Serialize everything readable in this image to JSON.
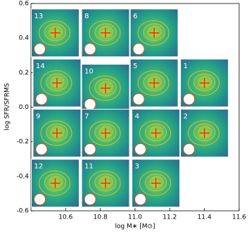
{
  "chart_data": {
    "type": "scatter",
    "x_label": "log M∗ [M⊙]",
    "y_label": "log SFR/SFRMS",
    "labels": [
      "13",
      "8",
      "6",
      "14",
      "10",
      "5",
      "1",
      "9",
      "7",
      "4",
      "2",
      "12",
      "11",
      "3"
    ],
    "x": [
      10.54,
      10.83,
      11.11,
      10.55,
      10.83,
      11.11,
      11.4,
      10.55,
      10.83,
      11.12,
      11.4,
      10.54,
      10.83,
      11.12
    ],
    "values": [
      0.43,
      0.43,
      0.43,
      0.14,
      0.11,
      0.14,
      0.14,
      -0.15,
      -0.15,
      -0.15,
      -0.15,
      -0.44,
      -0.44,
      -0.44
    ],
    "color": "#ff2020",
    "xlim": [
      10.4,
      11.6
    ],
    "xticks": [
      10.6,
      10.8,
      {
        "value": 11,
        "label": "11.0"
      },
      11.2,
      11.4,
      11.6
    ],
    "ylim": [
      -0.6,
      0.6
    ],
    "yticks": [
      -0.6,
      -0.4,
      -0.2,
      {
        "value": 0,
        "label": "0.0"
      },
      0.2,
      0.4,
      0.6
    ]
  }
}
